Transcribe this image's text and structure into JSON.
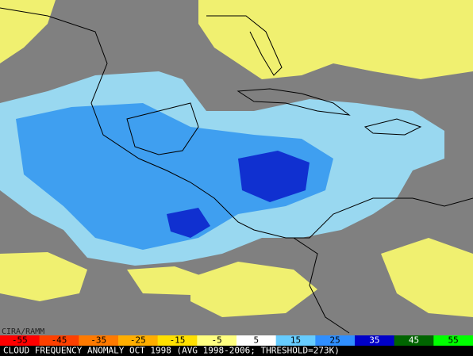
{
  "credit": "CIRA/RAMM",
  "colorbar": {
    "labels": [
      -55,
      -45,
      -35,
      -25,
      -15,
      -5,
      5,
      15,
      25,
      35,
      45,
      55
    ],
    "colors": [
      "#ff0000",
      "#ff4000",
      "#ff7a00",
      "#ffae00",
      "#ffe000",
      "#ffff80",
      "#ffffff",
      "#66ccff",
      "#2f8fff",
      "#0000c8",
      "#006400",
      "#00ff00"
    ]
  },
  "caption": "CLOUD FREQUENCY ANOMALY OCT 1998 (AVG 1998-2006; THRESHOLD=273K)"
}
